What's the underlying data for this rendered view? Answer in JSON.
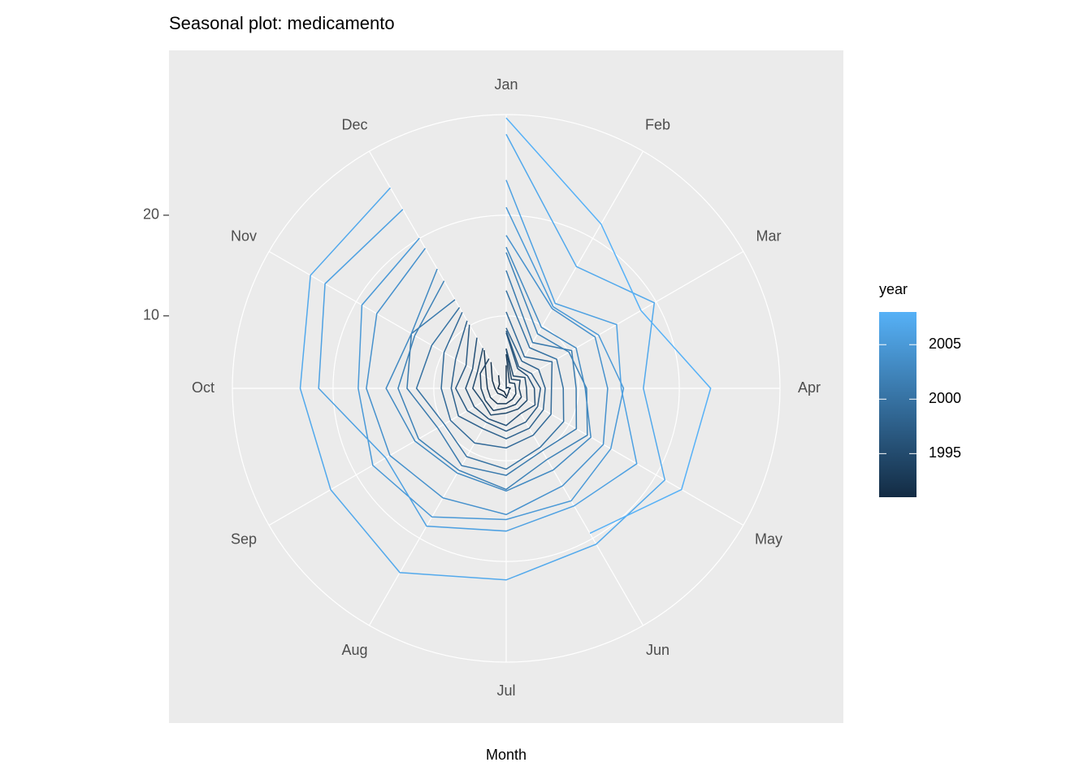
{
  "chart_data": {
    "type": "polar_line",
    "title": "Seasonal plot: medicamento",
    "xlabel": "Month",
    "categories": [
      "Jan",
      "Feb",
      "Mar",
      "Apr",
      "May",
      "Jun",
      "Jul",
      "Aug",
      "Sep",
      "Oct",
      "Nov",
      "Dec"
    ],
    "ylim": [
      2.8,
      30
    ],
    "yticks": [
      10,
      20
    ],
    "grid": true,
    "legend": {
      "title": "year",
      "position": "right",
      "range": [
        1991,
        2008
      ],
      "ticks": [
        1995,
        2000,
        2005
      ],
      "color_low": "#132B43",
      "color_high": "#56B1F7"
    },
    "series": [
      {
        "year": 1991,
        "values": [
          null,
          null,
          null,
          null,
          null,
          null,
          3.53,
          3.18,
          3.25,
          3.61,
          3.57,
          4.31
        ]
      },
      {
        "year": 1992,
        "values": [
          5.09,
          2.81,
          2.99,
          3.2,
          3.13,
          3.27,
          3.74,
          3.56,
          3.78,
          3.92,
          4.39,
          5.81
        ]
      },
      {
        "year": 1993,
        "values": [
          6.19,
          3.45,
          3.77,
          3.73,
          3.91,
          4.05,
          4.32,
          4.56,
          4.61,
          4.67,
          5.09,
          7.18
        ]
      },
      {
        "year": 1994,
        "values": [
          6.73,
          3.84,
          4.39,
          4.08,
          4.54,
          4.65,
          4.75,
          5.35,
          5.2,
          5.3,
          5.77,
          6.2
        ]
      },
      {
        "year": 1995,
        "values": [
          6.75,
          4.22,
          4.95,
          4.82,
          5.19,
          5.17,
          5.26,
          5.86,
          5.49,
          6.12,
          6.09,
          7.42
        ]
      },
      {
        "year": 1996,
        "values": [
          8.33,
          5.07,
          5.26,
          5.6,
          6.11,
          5.69,
          6.49,
          6.3,
          6.47,
          6.83,
          6.65,
          8.61
        ]
      },
      {
        "year": 1997,
        "values": [
          8.52,
          5.28,
          5.71,
          6.21,
          6.41,
          6.67,
          7.05,
          6.7,
          7.25,
          7.82,
          7.4,
          10.1
        ]
      },
      {
        "year": 1998,
        "values": [
          8.8,
          5.92,
          6.53,
          6.68,
          7.06,
          7.38,
          7.81,
          7.43,
          8.28,
          8.26,
          8.6,
          10.56
        ]
      },
      {
        "year": 1999,
        "values": [
          10.39,
          6.42,
          8.06,
          7.3,
          7.94,
          8.17,
          8.72,
          9.07,
          9.18,
          9.25,
          9.93,
          11.53
        ]
      },
      {
        "year": 2000,
        "values": [
          12.51,
          7.46,
          8.59,
          8.47,
          9.39,
          9.56,
          10.83,
          10.64,
          9.91,
          11.71,
          11.34,
          12.08
        ]
      },
      {
        "year": 2001,
        "values": [
          14.5,
          8.05,
          10.31,
          9.75,
          10.85,
          9.96,
          11.44,
          11.66,
          10.65,
          12.65,
          13.67,
          12.97
        ]
      },
      {
        "year": 2002,
        "values": [
          16.3,
          9.05,
          10.0,
          10.79,
          12.11,
          10.95,
          12.84,
          12.2,
          12.85,
          13.54,
          13.29,
          15.13
        ]
      },
      {
        "year": 2003,
        "values": [
          16.83,
          9.8,
          10.82,
          10.65,
          12.51,
          12.16,
          13.0,
          12.52,
          13.27,
          14.73,
          13.67,
          16.5
        ]
      },
      {
        "year": 2004,
        "values": [
          18.0,
          11.94,
          13.0,
          12.88,
          13.94,
          13.99,
          15.34,
          15.37,
          16.14,
          16.69,
          17.64,
          18.87
        ]
      },
      {
        "year": 2005,
        "values": [
          20.78,
          12.15,
          13.4,
          14.46,
          14.8,
          15.71,
          15.83,
          17.55,
          18.1,
          17.5,
          19.35,
          20.03
        ]
      },
      {
        "year": 2006,
        "values": [
          23.49,
          12.54,
          15.47,
          14.23,
          17.78,
          16.29,
          16.98,
          18.61,
          16.62,
          21.43,
          23.58,
          23.33
        ]
      },
      {
        "year": 2007,
        "values": [
          28.04,
          16.76,
          19.79,
          16.43,
          21.0,
          20.68,
          21.83,
          23.93,
          22.93,
          23.26,
          25.25,
          25.81
        ]
      },
      {
        "year": 2008,
        "values": [
          29.67,
          21.65,
          18.26,
          23.11,
          22.91,
          19.43,
          null,
          null,
          null,
          null,
          null,
          null
        ]
      }
    ]
  }
}
